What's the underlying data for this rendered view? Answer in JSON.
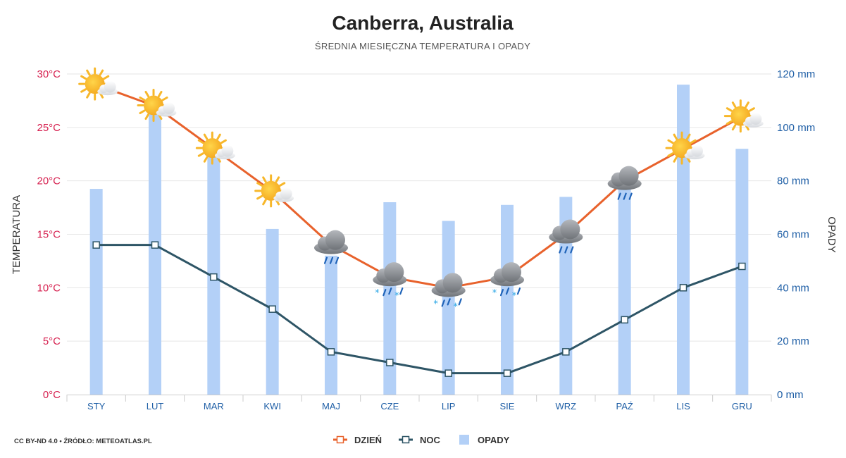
{
  "title": "Canberra, Australia",
  "subtitle": "ŚREDNIA MIESIĘCZNA TEMPERATURA I OPADY",
  "credit": "CC BY-ND 4.0 • ŹRÓDŁO: METEOATLAS.PL",
  "colors": {
    "day": "#e8622c",
    "night": "#2e5566",
    "precip": "#b3d0f7",
    "left_axis": "#d6204f",
    "right_axis": "#1f5fa6",
    "x_labels": "#1f5fa6"
  },
  "chart_data": {
    "type": "bar+line",
    "categories": [
      "STY",
      "LUT",
      "MAR",
      "KWI",
      "MAJ",
      "CZE",
      "LIP",
      "SIE",
      "WRZ",
      "PAŹ",
      "LIS",
      "GRU"
    ],
    "y_left": {
      "label": "TEMPERATURA",
      "range": [
        0,
        30
      ],
      "ticks": [
        {
          "value": 0,
          "label": "0°C"
        },
        {
          "value": 5,
          "label": "5°C"
        },
        {
          "value": 10,
          "label": "10°C"
        },
        {
          "value": 15,
          "label": "15°C"
        },
        {
          "value": 20,
          "label": "20°C"
        },
        {
          "value": 25,
          "label": "25°C"
        },
        {
          "value": 30,
          "label": "30°C"
        }
      ]
    },
    "y_right": {
      "label": "OPADY",
      "range": [
        0,
        120
      ],
      "ticks": [
        {
          "value": 0,
          "label": "0 mm"
        },
        {
          "value": 20,
          "label": "20 mm"
        },
        {
          "value": 40,
          "label": "40 mm"
        },
        {
          "value": 60,
          "label": "60 mm"
        },
        {
          "value": 80,
          "label": "80 mm"
        },
        {
          "value": 100,
          "label": "100 mm"
        },
        {
          "value": 120,
          "label": "120 mm"
        }
      ]
    },
    "series": [
      {
        "name": "DZIEŃ",
        "kind": "line",
        "axis": "left",
        "values": [
          29,
          27,
          23,
          19,
          14,
          11,
          10,
          11,
          15,
          20,
          23,
          26
        ]
      },
      {
        "name": "NOC",
        "kind": "line",
        "axis": "left",
        "values": [
          14,
          14,
          11,
          8,
          4,
          3,
          2,
          2,
          4,
          7,
          10,
          12
        ]
      },
      {
        "name": "OPADY",
        "kind": "bar",
        "axis": "right",
        "values": [
          77,
          106,
          90,
          62,
          52,
          72,
          65,
          71,
          74,
          80,
          116,
          92
        ]
      }
    ],
    "weather_icons": [
      "sun-cloud",
      "sun-cloud",
      "sun-cloud",
      "sun-cloud",
      "cloud-rain",
      "cloud-rain-snow",
      "cloud-rain-snow",
      "cloud-rain-snow",
      "cloud-rain",
      "cloud-rain",
      "sun-cloud",
      "sun-cloud"
    ],
    "grid": true,
    "legend_position": "bottom-center"
  }
}
